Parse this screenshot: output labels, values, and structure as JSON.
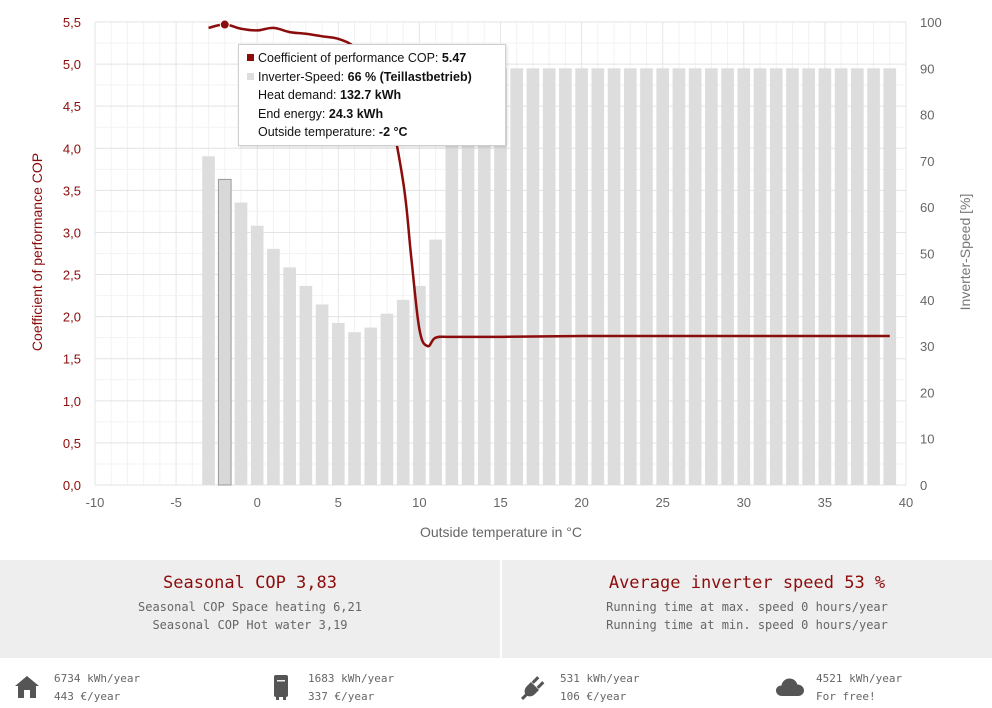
{
  "chart_data": {
    "type": "bar+line",
    "xlabel": "Outside temperature in °C",
    "ylabel_left": "Coefficient of performance COP",
    "ylabel_right": "Inverter-Speed [%]",
    "xlim": [
      -10,
      40
    ],
    "ylim_left": [
      0,
      5.5
    ],
    "ylim_right": [
      0,
      100
    ],
    "x_ticks": [
      "-10",
      "-5",
      "0",
      "5",
      "10",
      "15",
      "20",
      "25",
      "30",
      "35",
      "40"
    ],
    "y_left_ticks": [
      "0,0",
      "0,5",
      "1,0",
      "1,5",
      "2,0",
      "2,5",
      "3,0",
      "3,5",
      "4,0",
      "4,5",
      "5,0",
      "5,5"
    ],
    "y_right_ticks": [
      "0",
      "10",
      "20",
      "30",
      "40",
      "50",
      "60",
      "70",
      "80",
      "90",
      "100"
    ],
    "grid": true,
    "series": [
      {
        "name": "Inverter-Speed",
        "kind": "bar",
        "axis": "right",
        "color": "#dddddd",
        "x": [
          -3,
          -2,
          -1,
          0,
          1,
          2,
          3,
          4,
          5,
          6,
          7,
          8,
          9,
          10,
          11,
          12,
          13,
          14,
          15,
          16,
          17,
          18,
          19,
          20,
          21,
          22,
          23,
          24,
          25,
          26,
          27,
          28,
          29,
          30,
          31,
          32,
          33,
          34,
          35,
          36,
          37,
          38,
          39
        ],
        "values": [
          71,
          66,
          61,
          56,
          51,
          47,
          43,
          39,
          35,
          33,
          34,
          37,
          40,
          43,
          53,
          90,
          90,
          90,
          90,
          90,
          90,
          90,
          90,
          90,
          90,
          90,
          90,
          90,
          90,
          90,
          90,
          90,
          90,
          90,
          90,
          90,
          90,
          90,
          90,
          90,
          90,
          90,
          90
        ],
        "highlight_x": -2
      },
      {
        "name": "Coefficient of performance COP",
        "kind": "line",
        "axis": "left",
        "color": "#8b0c0c",
        "x": [
          -3,
          -2,
          -1,
          0,
          1,
          2,
          3,
          4,
          5,
          6,
          7,
          8,
          9,
          9.5,
          10,
          10.5,
          11,
          12,
          15,
          20,
          25,
          30,
          35,
          39
        ],
        "values": [
          5.43,
          5.47,
          5.42,
          5.4,
          5.43,
          5.38,
          5.36,
          5.33,
          5.3,
          5.2,
          4.95,
          4.55,
          3.6,
          2.7,
          1.85,
          1.65,
          1.75,
          1.76,
          1.76,
          1.77,
          1.77,
          1.77,
          1.77,
          1.77
        ],
        "marker_x": -2
      }
    ]
  },
  "tooltip": {
    "cop_label": "Coefficient of performance COP: ",
    "cop_value": "5.47",
    "speed_label": "Inverter-Speed: ",
    "speed_value": "66 % (Teillastbetrieb)",
    "heat_label": "Heat demand: ",
    "heat_value": "132.7 kWh",
    "end_label": "End energy: ",
    "end_value": "24.3 kWh",
    "temp_label": "Outside temperature: ",
    "temp_value": "-2 °C"
  },
  "summary": {
    "left": {
      "title": "Seasonal COP 3,83",
      "line1": "Seasonal COP Space heating 6,21",
      "line2": "Seasonal COP Hot water 3,19"
    },
    "right": {
      "title": "Average inverter speed 53 %",
      "line1": "Running time at max. speed 0 hours/year",
      "line2": "Running time at min. speed 0 hours/year"
    }
  },
  "footer": [
    {
      "icon": "house-icon",
      "line1": "6734 kWh/year",
      "line2": "443 €/year"
    },
    {
      "icon": "water-heater-icon",
      "line1": "1683 kWh/year",
      "line2": "337 €/year"
    },
    {
      "icon": "plug-icon",
      "line1": "531 kWh/year",
      "line2": "106 €/year"
    },
    {
      "icon": "cloud-icon",
      "line1": "4521 kWh/year",
      "line2": "For free!"
    }
  ]
}
